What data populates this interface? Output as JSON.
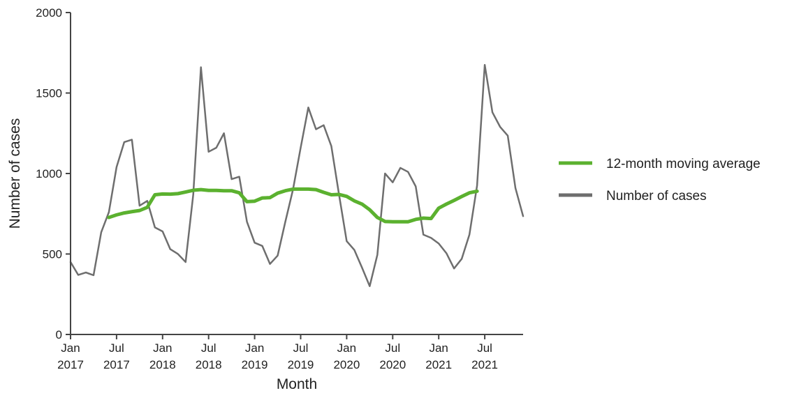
{
  "chart_data": {
    "type": "line",
    "xlabel": "Month",
    "ylabel": "Number of cases",
    "ylim": [
      0,
      2000
    ],
    "yticks": [
      0,
      500,
      1000,
      1500,
      2000
    ],
    "x_start": "Jan 2017",
    "x_end": "Dec 2021",
    "grid": false,
    "legend_position": "right",
    "xticks": [
      {
        "month": "Jan",
        "year": "2017",
        "index": 0
      },
      {
        "month": "Jul",
        "year": "2017",
        "index": 6
      },
      {
        "month": "Jan",
        "year": "2018",
        "index": 12
      },
      {
        "month": "Jul",
        "year": "2018",
        "index": 18
      },
      {
        "month": "Jan",
        "year": "2019",
        "index": 24
      },
      {
        "month": "Jul",
        "year": "2019",
        "index": 30
      },
      {
        "month": "Jan",
        "year": "2020",
        "index": 36
      },
      {
        "month": "Jul",
        "year": "2020",
        "index": 42
      },
      {
        "month": "Jan",
        "year": "2021",
        "index": 48
      },
      {
        "month": "Jul",
        "year": "2021",
        "index": 54
      }
    ],
    "series": [
      {
        "name": "12-month moving average",
        "color": "#5bb12f",
        "start_index": 5,
        "values": [
          727,
          743,
          755,
          763,
          770,
          790,
          868,
          873,
          872,
          875,
          885,
          896,
          900,
          895,
          895,
          893,
          893,
          880,
          825,
          828,
          848,
          850,
          878,
          893,
          903,
          903,
          903,
          900,
          883,
          868,
          870,
          858,
          830,
          810,
          775,
          727,
          702,
          700,
          700,
          700,
          715,
          723,
          720,
          785,
          810,
          833,
          857,
          880,
          890
        ]
      },
      {
        "name": "Number of cases",
        "color": "#6e6e6e",
        "start_index": 0,
        "values": [
          450,
          370,
          385,
          368,
          635,
          760,
          1040,
          1195,
          1210,
          800,
          830,
          665,
          640,
          530,
          500,
          450,
          870,
          1660,
          1135,
          1160,
          1250,
          965,
          980,
          700,
          570,
          550,
          438,
          490,
          700,
          900,
          1160,
          1410,
          1275,
          1300,
          1170,
          870,
          580,
          525,
          415,
          300,
          495,
          1000,
          945,
          1035,
          1010,
          920,
          620,
          600,
          565,
          505,
          410,
          470,
          620,
          925,
          1675,
          1380,
          1290,
          1235,
          910,
          735
        ]
      }
    ]
  }
}
